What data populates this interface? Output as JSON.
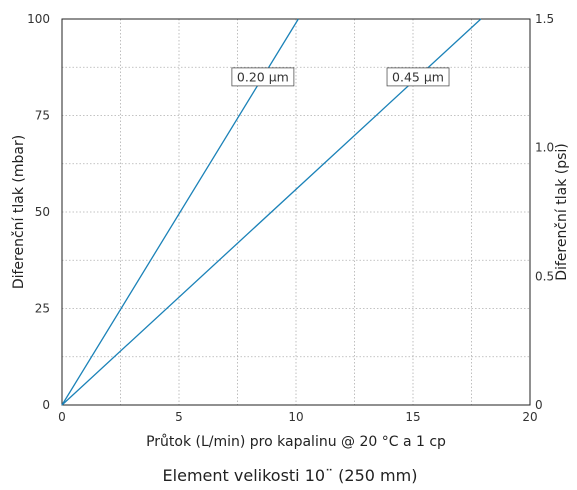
{
  "chart_data": {
    "type": "line",
    "title": "",
    "xlabel": "Průtok (L/min) pro kapalinu @ 20 °C a 1 cp",
    "ylabel_left": "Diferenční tlak (mbar)",
    "ylabel_right": "Diferenční tlak (psi)",
    "caption": "Element velikosti 10¨ (250 mm)",
    "xlim": [
      0,
      20
    ],
    "ylim_left": [
      0,
      100
    ],
    "ylim_right": [
      0,
      1.5
    ],
    "x_ticks": [
      "0",
      "5",
      "10",
      "15",
      "20"
    ],
    "y_ticks_left": [
      "0",
      "25",
      "50",
      "75",
      "100"
    ],
    "y_ticks_right": [
      "0",
      "0.5",
      "1.0",
      "1.5"
    ],
    "grid": true,
    "line_color": "#1b82b8",
    "series": [
      {
        "name": "0.20 µm",
        "x": [
          0,
          10.1
        ],
        "y": [
          0,
          100
        ]
      },
      {
        "name": "0.45 µm",
        "x": [
          0,
          17.9
        ],
        "y": [
          0,
          100
        ]
      }
    ]
  }
}
